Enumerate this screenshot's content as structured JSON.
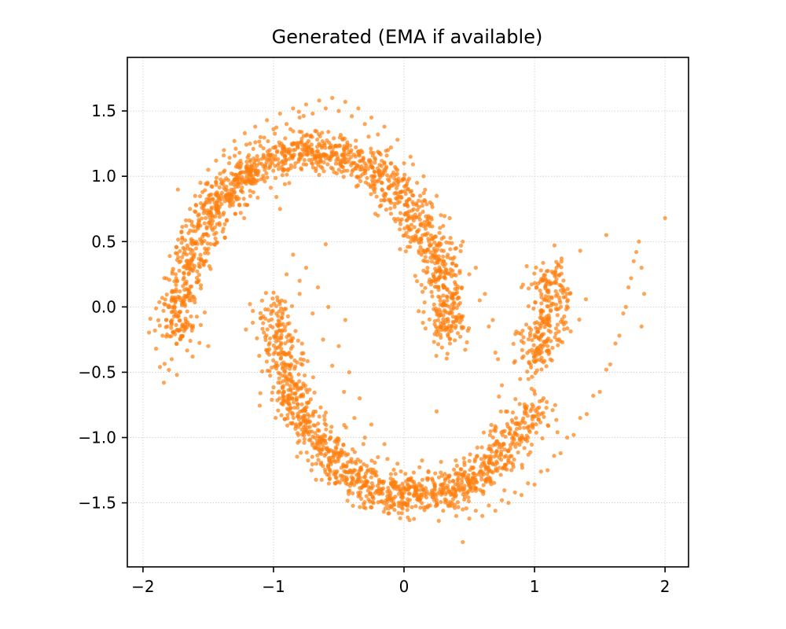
{
  "chart_data": {
    "type": "scatter",
    "title": "Generated (EMA if available)",
    "xlabel": "",
    "ylabel": "",
    "xlim": [
      -2.12,
      2.18
    ],
    "ylim": [
      -1.99,
      1.91
    ],
    "x_ticks": [
      -2,
      -1,
      0,
      1,
      2
    ],
    "y_ticks": [
      -1.5,
      -1.0,
      -0.5,
      0.0,
      0.5,
      1.0,
      1.5
    ],
    "x_tick_labels": [
      "−2",
      "−1",
      "0",
      "1",
      "2"
    ],
    "y_tick_labels": [
      "−1.5",
      "−1.0",
      "−0.5",
      "0.0",
      "0.5",
      "1.0",
      "1.5"
    ],
    "grid": true,
    "legend": "none",
    "point_color": "#ff7f0e",
    "point_alpha": 0.7,
    "series": [
      {
        "description": "upper moon (points sampled along the arc)",
        "points": [
          [
            -1.9,
            -0.32
          ],
          [
            -1.87,
            -0.46
          ],
          [
            -1.85,
            -0.22
          ],
          [
            -1.84,
            -0.58
          ],
          [
            -1.82,
            -0.1
          ],
          [
            -1.8,
            0.0
          ],
          [
            -1.78,
            -0.4
          ],
          [
            -1.77,
            0.12
          ],
          [
            -1.75,
            0.25
          ],
          [
            -1.74,
            -0.52
          ],
          [
            -1.73,
            0.38
          ],
          [
            -1.71,
            0.05
          ],
          [
            -1.7,
            0.52
          ],
          [
            -1.69,
            -0.15
          ],
          [
            -1.67,
            0.62
          ],
          [
            -1.66,
            0.3
          ],
          [
            -1.64,
            0.75
          ],
          [
            -1.62,
            0.48
          ],
          [
            -1.6,
            0.85
          ],
          [
            -1.58,
            0.62
          ],
          [
            -1.56,
            0.95
          ],
          [
            -1.53,
            0.78
          ],
          [
            -1.5,
            1.05
          ],
          [
            -1.47,
            0.92
          ],
          [
            -1.44,
            1.12
          ],
          [
            -1.41,
            1.02
          ],
          [
            -1.38,
            1.2
          ],
          [
            -1.34,
            1.1
          ],
          [
            -1.3,
            1.27
          ],
          [
            -1.26,
            1.18
          ],
          [
            -1.22,
            1.33
          ],
          [
            -1.18,
            1.25
          ],
          [
            -1.14,
            1.38
          ],
          [
            -1.1,
            1.3
          ],
          [
            -1.05,
            1.43
          ],
          [
            -1.0,
            1.36
          ],
          [
            -0.95,
            1.48
          ],
          [
            -0.9,
            1.4
          ],
          [
            -0.85,
            1.52
          ],
          [
            -0.8,
            1.45
          ],
          [
            -0.75,
            1.55
          ],
          [
            -0.7,
            1.48
          ],
          [
            -0.65,
            1.58
          ],
          [
            -0.6,
            1.52
          ],
          [
            -0.55,
            1.6
          ],
          [
            -0.5,
            1.5
          ],
          [
            -0.45,
            1.57
          ],
          [
            -0.4,
            1.46
          ],
          [
            -0.35,
            1.52
          ],
          [
            -0.3,
            1.4
          ],
          [
            -0.25,
            1.45
          ],
          [
            -0.2,
            1.32
          ],
          [
            -0.15,
            1.38
          ],
          [
            -0.1,
            1.22
          ],
          [
            -0.05,
            1.28
          ],
          [
            0.0,
            1.1
          ],
          [
            0.05,
            1.15
          ],
          [
            0.1,
            0.95
          ],
          [
            0.15,
            1.0
          ],
          [
            0.2,
            0.8
          ],
          [
            0.25,
            0.85
          ],
          [
            0.3,
            0.62
          ],
          [
            0.35,
            0.68
          ],
          [
            0.4,
            0.45
          ],
          [
            0.45,
            0.5
          ],
          [
            0.5,
            0.25
          ],
          [
            0.55,
            0.3
          ],
          [
            0.58,
            0.05
          ],
          [
            0.62,
            0.1
          ],
          [
            0.65,
            -0.15
          ],
          [
            0.68,
            -0.1
          ],
          [
            0.7,
            -0.35
          ],
          [
            0.72,
            -0.4
          ],
          [
            0.75,
            -0.6
          ],
          [
            0.78,
            -0.8
          ],
          [
            -1.62,
            -0.38
          ],
          [
            -1.5,
            -0.3
          ],
          [
            -0.95,
            0.75
          ],
          [
            -0.8,
            0.2
          ],
          [
            -0.92,
            -0.65
          ],
          [
            0.88,
            -0.2
          ],
          [
            -0.3,
            1.1
          ],
          [
            0.9,
            0.15
          ],
          [
            -0.6,
            0.48
          ],
          [
            -0.2,
            0.7
          ]
        ]
      },
      {
        "description": "lower moon (points sampled along the arc)",
        "points": [
          [
            -0.9,
            0.25
          ],
          [
            -0.85,
            0.4
          ],
          [
            -0.8,
            0.1
          ],
          [
            -0.75,
            0.3
          ],
          [
            -0.7,
            -0.05
          ],
          [
            -0.66,
            0.15
          ],
          [
            -0.62,
            -0.25
          ],
          [
            -0.58,
            0.0
          ],
          [
            -0.55,
            -0.45
          ],
          [
            -0.5,
            -0.3
          ],
          [
            -0.46,
            -0.65
          ],
          [
            -0.42,
            -0.5
          ],
          [
            -0.38,
            -0.85
          ],
          [
            -0.34,
            -0.7
          ],
          [
            -0.3,
            -1.0
          ],
          [
            -0.25,
            -0.9
          ],
          [
            -0.2,
            -1.15
          ],
          [
            -0.15,
            -1.05
          ],
          [
            -0.1,
            -1.28
          ],
          [
            -0.05,
            -1.2
          ],
          [
            0.0,
            -1.38
          ],
          [
            0.05,
            -1.32
          ],
          [
            0.1,
            -1.45
          ],
          [
            0.15,
            -1.4
          ],
          [
            0.2,
            -1.52
          ],
          [
            0.25,
            -1.48
          ],
          [
            0.3,
            -1.56
          ],
          [
            0.35,
            -1.52
          ],
          [
            0.4,
            -1.6
          ],
          [
            0.45,
            -1.55
          ],
          [
            0.5,
            -1.62
          ],
          [
            0.55,
            -1.56
          ],
          [
            0.6,
            -1.6
          ],
          [
            0.65,
            -1.52
          ],
          [
            0.7,
            -1.56
          ],
          [
            0.75,
            -1.48
          ],
          [
            0.8,
            -1.5
          ],
          [
            0.85,
            -1.42
          ],
          [
            0.9,
            -1.44
          ],
          [
            0.95,
            -1.35
          ],
          [
            1.0,
            -1.36
          ],
          [
            1.05,
            -1.26
          ],
          [
            1.1,
            -1.25
          ],
          [
            1.15,
            -1.14
          ],
          [
            1.2,
            -1.12
          ],
          [
            1.25,
            -1.0
          ],
          [
            1.3,
            -0.98
          ],
          [
            1.35,
            -0.85
          ],
          [
            1.4,
            -0.82
          ],
          [
            1.45,
            -0.68
          ],
          [
            1.5,
            -0.65
          ],
          [
            1.55,
            -0.48
          ],
          [
            1.58,
            -0.44
          ],
          [
            1.62,
            -0.28
          ],
          [
            1.65,
            -0.22
          ],
          [
            1.68,
            -0.05
          ],
          [
            1.7,
            0.0
          ],
          [
            1.72,
            0.15
          ],
          [
            1.74,
            0.22
          ],
          [
            1.76,
            0.35
          ],
          [
            1.78,
            0.42
          ],
          [
            1.8,
            0.5
          ],
          [
            1.82,
            0.3
          ],
          [
            1.84,
            0.1
          ],
          [
            1.82,
            -0.15
          ],
          [
            2.0,
            0.68
          ],
          [
            1.35,
            0.43
          ],
          [
            0.45,
            -1.8
          ],
          [
            0.7,
            -0.95
          ],
          [
            0.25,
            -0.8
          ],
          [
            -0.45,
            -0.1
          ],
          [
            0.6,
            -1.2
          ],
          [
            1.1,
            -0.3
          ],
          [
            0.95,
            -1.0
          ],
          [
            1.55,
            0.55
          ]
        ]
      }
    ]
  }
}
